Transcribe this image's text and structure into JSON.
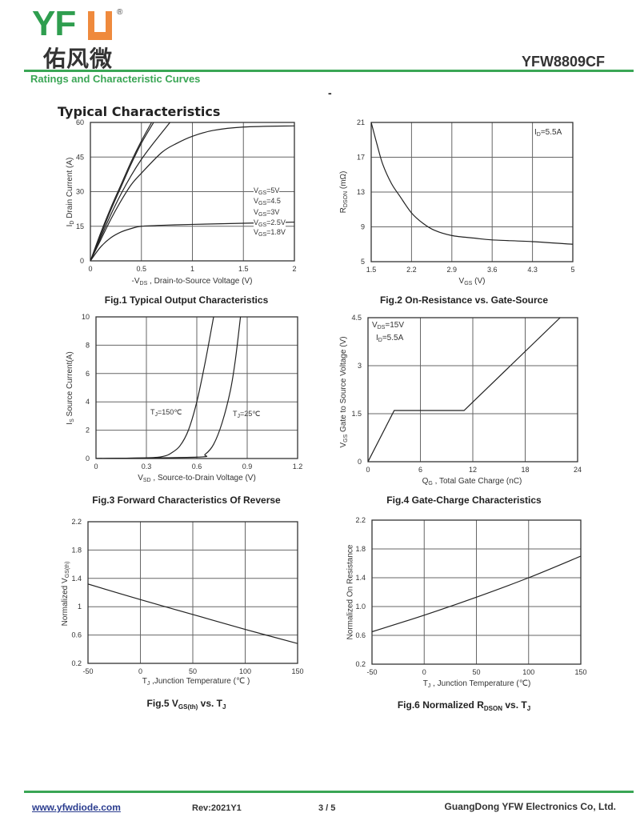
{
  "header": {
    "logo_text": "YFW",
    "logo_letters_green": "YF",
    "logo_cn": "佑风微",
    "registered": "®",
    "part_number": "YFW8809CF",
    "section_title": "Ratings and Characteristic Curves",
    "dash": "-"
  },
  "typical_title": "Typical Characteristics",
  "colors": {
    "brand_green": "#3aa655",
    "brand_orange": "#ef8a3d",
    "curve": "#222222",
    "grid": "#555555"
  },
  "footer": {
    "website": "www.yfwdiode.com",
    "rev": "Rev:2021Y1",
    "page": "3 / 5",
    "company": "GuangDong YFW Electronics Co, Ltd."
  },
  "chart_data": [
    {
      "type": "line",
      "caption": [
        {
          "t": "Fig.1 Typical Output Characteristics"
        }
      ],
      "xlabel": [
        {
          "t": "-V"
        },
        {
          "t": "DS",
          "sub": true
        },
        {
          "t": " , Drain-to-Source Voltage (V)"
        }
      ],
      "ylabel": [
        {
          "t": "I"
        },
        {
          "t": "D",
          "sub": true
        },
        {
          "t": " Drain Current (A)"
        }
      ],
      "xlim": [
        0,
        2
      ],
      "ylim": [
        0,
        60
      ],
      "xticks": [
        "0",
        "0.5",
        "1",
        "1.5",
        "2"
      ],
      "yticks": [
        "0",
        "15",
        "30",
        "45",
        "60"
      ],
      "grid": true,
      "series": [
        {
          "name": [
            {
              "t": "V"
            },
            {
              "t": "GS",
              "sub": true
            },
            {
              "t": "=5V"
            }
          ],
          "points": [
            [
              0,
              0
            ],
            [
              0.1,
              12
            ],
            [
              0.2,
              23
            ],
            [
              0.3,
              33
            ],
            [
              0.4,
              43
            ],
            [
              0.5,
              52
            ],
            [
              0.6,
              60
            ]
          ]
        },
        {
          "name": [
            {
              "t": "V"
            },
            {
              "t": "GS",
              "sub": true
            },
            {
              "t": "=4.5"
            }
          ],
          "points": [
            [
              0,
              0
            ],
            [
              0.1,
              11
            ],
            [
              0.2,
              22
            ],
            [
              0.3,
              32
            ],
            [
              0.4,
              42
            ],
            [
              0.5,
              51
            ],
            [
              0.62,
              60
            ]
          ]
        },
        {
          "name": [
            {
              "t": "V"
            },
            {
              "t": "GS",
              "sub": true
            },
            {
              "t": "=3V"
            }
          ],
          "points": [
            [
              0,
              0
            ],
            [
              0.1,
              10
            ],
            [
              0.2,
              20
            ],
            [
              0.3,
              29
            ],
            [
              0.4,
              37
            ],
            [
              0.5,
              44
            ],
            [
              0.6,
              50
            ],
            [
              0.78,
              60
            ]
          ]
        },
        {
          "name": [
            {
              "t": "V"
            },
            {
              "t": "GS",
              "sub": true
            },
            {
              "t": "=2.5V"
            }
          ],
          "points": [
            [
              0,
              0
            ],
            [
              0.1,
              9
            ],
            [
              0.2,
              18
            ],
            [
              0.3,
              26
            ],
            [
              0.4,
              33
            ],
            [
              0.5,
              38
            ],
            [
              0.7,
              47
            ],
            [
              0.85,
              51
            ],
            [
              1,
              54
            ],
            [
              1.2,
              56.5
            ],
            [
              1.5,
              58
            ],
            [
              2,
              58.5
            ]
          ]
        },
        {
          "name": [
            {
              "t": "V"
            },
            {
              "t": "GS",
              "sub": true
            },
            {
              "t": "=1.8V"
            }
          ],
          "points": [
            [
              0,
              0
            ],
            [
              0.1,
              6
            ],
            [
              0.2,
              10
            ],
            [
              0.3,
              12.5
            ],
            [
              0.4,
              14
            ],
            [
              0.5,
              15
            ],
            [
              0.75,
              15.5
            ],
            [
              1,
              15.8
            ],
            [
              1.5,
              16.3
            ],
            [
              2,
              16.8
            ]
          ]
        }
      ]
    },
    {
      "type": "line",
      "caption": [
        {
          "t": "Fig.2 On-Resistance vs. Gate-Source"
        }
      ],
      "xlabel": [
        {
          "t": "V"
        },
        {
          "t": "GS",
          "sub": true
        },
        {
          "t": " (V)"
        }
      ],
      "ylabel": [
        {
          "t": "R"
        },
        {
          "t": "DSON",
          "sub": true
        },
        {
          "t": " (mΩ)"
        }
      ],
      "xlim": [
        1.5,
        5
      ],
      "ylim": [
        5,
        21
      ],
      "xticks": [
        "1.5",
        "2.2",
        "2.9",
        "3.6",
        "4.3",
        "5"
      ],
      "yticks": [
        "5",
        "9",
        "13",
        "17",
        "21"
      ],
      "grid": true,
      "annotations": [
        [
          {
            "t": "I"
          },
          {
            "t": "D",
            "sub": true
          },
          {
            "t": "=5.5A"
          }
        ]
      ],
      "series": [
        {
          "points": [
            [
              1.5,
              21
            ],
            [
              1.6,
              18.5
            ],
            [
              1.7,
              16.2
            ],
            [
              1.85,
              14
            ],
            [
              2,
              12.5
            ],
            [
              2.2,
              10.6
            ],
            [
              2.4,
              9.4
            ],
            [
              2.6,
              8.6
            ],
            [
              2.9,
              8
            ],
            [
              3.3,
              7.7
            ],
            [
              3.6,
              7.5
            ],
            [
              4.3,
              7.3
            ],
            [
              5,
              7
            ]
          ]
        }
      ]
    },
    {
      "type": "line",
      "caption": [
        {
          "t": "Fig.3 Forward Characteristics Of Reverse"
        }
      ],
      "xlabel": [
        {
          "t": "V"
        },
        {
          "t": "SD",
          "sub": true
        },
        {
          "t": " , Source-to-Drain Voltage (V)"
        }
      ],
      "ylabel": [
        {
          "t": "I"
        },
        {
          "t": "S",
          "sub": true
        },
        {
          "t": " Source Current(A)"
        }
      ],
      "xlim": [
        0,
        1.2
      ],
      "ylim": [
        0,
        10
      ],
      "xticks": [
        "0",
        "0.3",
        "0.6",
        "0.9",
        "1.2"
      ],
      "yticks": [
        "0",
        "2",
        "4",
        "6",
        "8",
        "10"
      ],
      "grid": true,
      "series": [
        {
          "name": [
            {
              "t": "T"
            },
            {
              "t": "J",
              "sub": true
            },
            {
              "t": "=150℃"
            }
          ],
          "points": [
            [
              0,
              0
            ],
            [
              0.3,
              0.05
            ],
            [
              0.4,
              0.15
            ],
            [
              0.45,
              0.4
            ],
            [
              0.5,
              0.9
            ],
            [
              0.55,
              2
            ],
            [
              0.6,
              4
            ],
            [
              0.65,
              6.8
            ],
            [
              0.7,
              10
            ]
          ]
        },
        {
          "name": [
            {
              "t": "T"
            },
            {
              "t": "J",
              "sub": true
            },
            {
              "t": "=25℃"
            }
          ],
          "points": [
            [
              0,
              0
            ],
            [
              0.6,
              0.1
            ],
            [
              0.65,
              0.3
            ],
            [
              0.7,
              1
            ],
            [
              0.75,
              2.5
            ],
            [
              0.8,
              4.8
            ],
            [
              0.83,
              7
            ],
            [
              0.86,
              10
            ]
          ]
        }
      ]
    },
    {
      "type": "line",
      "caption": [
        {
          "t": "Fig.4 Gate-Charge Characteristics"
        }
      ],
      "xlabel": [
        {
          "t": "Q"
        },
        {
          "t": "G",
          "sub": true
        },
        {
          "t": " , Total Gate Charge (nC)"
        }
      ],
      "ylabel": [
        {
          "t": "V"
        },
        {
          "t": "GS",
          "sub": true
        },
        {
          "t": "    Gate to Source Voltage (V)"
        }
      ],
      "xlim": [
        0,
        24
      ],
      "ylim": [
        0,
        4.5
      ],
      "xticks": [
        "0",
        "6",
        "12",
        "18",
        "24"
      ],
      "yticks": [
        "0",
        "1.5",
        "3",
        "4.5"
      ],
      "grid": true,
      "annotations": [
        [
          {
            "t": "V"
          },
          {
            "t": "DS",
            "sub": true
          },
          {
            "t": "=15V"
          }
        ],
        [
          {
            "t": "I"
          },
          {
            "t": "D",
            "sub": true
          },
          {
            "t": "=5.5A"
          }
        ]
      ],
      "series": [
        {
          "points": [
            [
              0,
              0
            ],
            [
              3,
              1.6
            ],
            [
              11,
              1.6
            ],
            [
              22,
              4.5
            ]
          ]
        }
      ]
    },
    {
      "type": "line",
      "caption": [
        {
          "t": "Fig.5 V"
        },
        {
          "t": "GS(th)",
          "sub": true
        },
        {
          "t": " vs. T"
        },
        {
          "t": "J",
          "sub": true
        }
      ],
      "xlabel": [
        {
          "t": "T"
        },
        {
          "t": "J",
          "sub": true
        },
        {
          "t": " ,Junction Temperature (℃ )"
        }
      ],
      "ylabel": [
        {
          "t": "Normalized V"
        },
        {
          "t": "GS(th)",
          "sub": true
        }
      ],
      "xlim": [
        -50,
        150
      ],
      "ylim": [
        0.2,
        2.2
      ],
      "xticks": [
        "-50",
        "0",
        "50",
        "100",
        "150"
      ],
      "yticks": [
        "0.2",
        "0.6",
        "1",
        "1.4",
        "1.8",
        "2.2"
      ],
      "grid": true,
      "series": [
        {
          "points": [
            [
              -50,
              1.32
            ],
            [
              0,
              1.1
            ],
            [
              50,
              0.89
            ],
            [
              100,
              0.68
            ],
            [
              150,
              0.48
            ]
          ]
        }
      ]
    },
    {
      "type": "line",
      "caption": [
        {
          "t": "Fig.6 Normalized R"
        },
        {
          "t": "DSON",
          "sub": true
        },
        {
          "t": " vs. T"
        },
        {
          "t": "J",
          "sub": true
        }
      ],
      "xlabel": [
        {
          "t": "T"
        },
        {
          "t": "J",
          "sub": true
        },
        {
          "t": " , Junction Temperature (℃)"
        }
      ],
      "ylabel": [
        {
          "t": "Normalized On Resistance"
        }
      ],
      "xlim": [
        -50,
        150
      ],
      "ylim": [
        0.2,
        2.2
      ],
      "xticks": [
        "-50",
        "0",
        "50",
        "100",
        "150"
      ],
      "yticks": [
        "0.2",
        "0.6",
        "1.0",
        "1.4",
        "1.8",
        "2.2"
      ],
      "grid": true,
      "series": [
        {
          "points": [
            [
              -50,
              0.65
            ],
            [
              0,
              0.88
            ],
            [
              50,
              1.13
            ],
            [
              100,
              1.4
            ],
            [
              150,
              1.7
            ]
          ]
        }
      ]
    }
  ]
}
